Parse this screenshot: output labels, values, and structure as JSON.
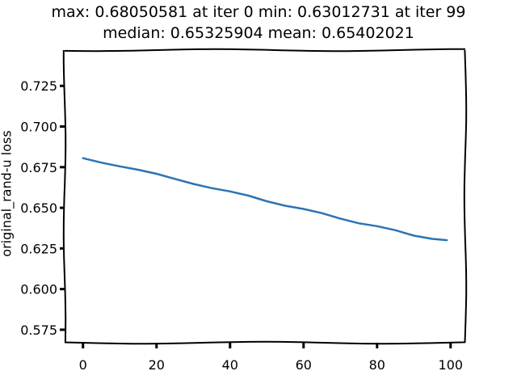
{
  "chart_data": {
    "type": "line",
    "title_lines": [
      "max: 0.68050581 at iter 0 min: 0.63012731 at iter 99",
      "median: 0.65325904 mean: 0.65402021"
    ],
    "xlabel": "",
    "ylabel": "original_rand-u loss",
    "xlim": [
      -5,
      104
    ],
    "ylim": [
      0.567,
      0.747
    ],
    "xticks": [
      0,
      20,
      40,
      60,
      80,
      100
    ],
    "yticks": [
      0.575,
      0.6,
      0.625,
      0.65,
      0.675,
      0.7,
      0.725
    ],
    "ytick_labels": [
      "0.575",
      "0.600",
      "0.625",
      "0.650",
      "0.675",
      "0.700",
      "0.725"
    ],
    "xtick_labels": [
      "0",
      "20",
      "40",
      "60",
      "80",
      "100"
    ],
    "grid": false,
    "series": [
      {
        "color": "#2c73b4",
        "x": [
          0,
          5,
          10,
          15,
          20,
          25,
          30,
          35,
          40,
          45,
          50,
          55,
          60,
          65,
          70,
          75,
          80,
          85,
          90,
          95,
          99
        ],
        "y": [
          0.6805,
          0.6778,
          0.6755,
          0.6734,
          0.6709,
          0.6678,
          0.6647,
          0.6621,
          0.6601,
          0.6575,
          0.654,
          0.6513,
          0.6493,
          0.6467,
          0.6434,
          0.6405,
          0.6387,
          0.6362,
          0.6329,
          0.6309,
          0.6301
        ]
      }
    ]
  }
}
